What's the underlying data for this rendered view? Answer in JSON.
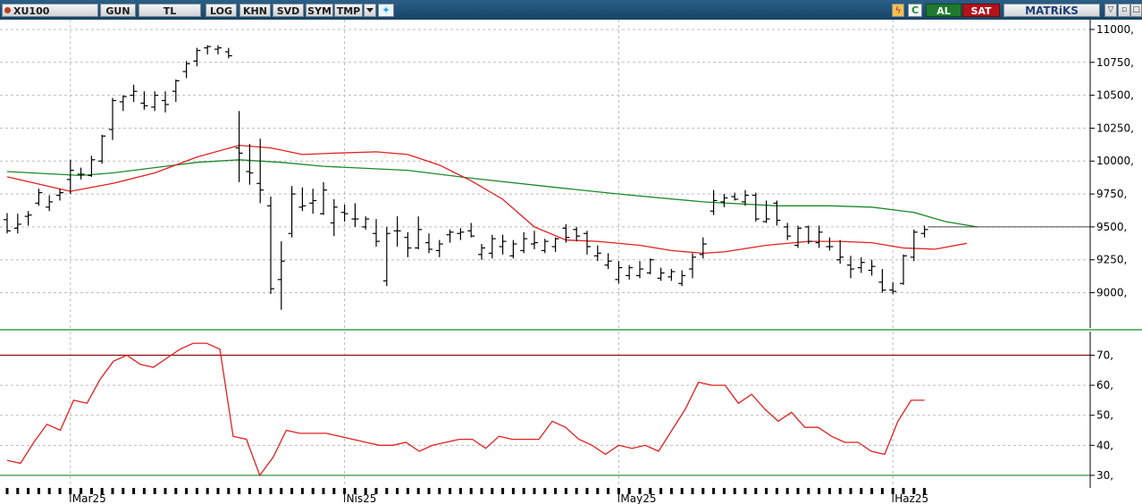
{
  "toolbar": {
    "symbol": "XU100",
    "buttons": [
      "GUN",
      "TL",
      "LOG",
      "KHN",
      "SVD",
      "SYM",
      "TMP"
    ],
    "buy_label": "AL",
    "sell_label": "SAT",
    "brand": "MATRiKS"
  },
  "chart_data": [
    {
      "type": "ohlc",
      "ylim": [
        8800,
        11020
      ],
      "yticks": [
        9000,
        9250,
        9500,
        9750,
        10000,
        10250,
        10500,
        10750,
        11000
      ],
      "ytick_labels": [
        "9000,",
        "9250,",
        "9500,",
        "9750,",
        "10000,",
        "10250,",
        "10500,",
        "10750,",
        "11000,"
      ],
      "x_labels": [
        "Mar25",
        "Nis25",
        "May25",
        "Haz25"
      ],
      "x_label_index": [
        6,
        32,
        58,
        84
      ],
      "grid": true,
      "bars": [
        [
          9555,
          9605,
          9450,
          9470
        ],
        [
          9490,
          9600,
          9450,
          9520
        ],
        [
          9580,
          9620,
          9510,
          9590
        ],
        [
          9680,
          9790,
          9660,
          9760
        ],
        [
          9650,
          9740,
          9620,
          9690
        ],
        [
          9740,
          9790,
          9700,
          9760
        ],
        [
          9860,
          10010,
          9750,
          9930
        ],
        [
          9900,
          9950,
          9860,
          9900
        ],
        [
          9890,
          10040,
          9880,
          10010
        ],
        [
          10000,
          10200,
          9980,
          10190
        ],
        [
          10240,
          10480,
          10160,
          10460
        ],
        [
          10450,
          10500,
          10380,
          10490
        ],
        [
          10500,
          10580,
          10450,
          10530
        ],
        [
          10440,
          10530,
          10390,
          10420
        ],
        [
          10410,
          10530,
          10380,
          10500
        ],
        [
          10460,
          10530,
          10370,
          10430
        ],
        [
          10530,
          10620,
          10450,
          10610
        ],
        [
          10680,
          10760,
          10630,
          10740
        ],
        [
          10760,
          10860,
          10720,
          10840
        ],
        [
          10860,
          10880,
          10810,
          10870
        ],
        [
          10850,
          10880,
          10810,
          10860
        ],
        [
          10830,
          10860,
          10780,
          10800
        ],
        [
          10100,
          10380,
          9840,
          10060
        ],
        [
          9920,
          10130,
          9820,
          9910
        ],
        [
          9830,
          10170,
          9680,
          9780
        ],
        [
          9660,
          9730,
          8990,
          9030
        ],
        [
          9100,
          9390,
          8870,
          9240
        ],
        [
          9450,
          9810,
          9420,
          9750
        ],
        [
          9650,
          9800,
          9620,
          9660
        ],
        [
          9680,
          9790,
          9600,
          9700
        ],
        [
          9600,
          9840,
          9590,
          9780
        ],
        [
          9530,
          9710,
          9430,
          9650
        ],
        [
          9610,
          9670,
          9540,
          9600
        ],
        [
          9560,
          9680,
          9500,
          9560
        ],
        [
          9500,
          9580,
          9480,
          9560
        ],
        [
          9450,
          9560,
          9350,
          9390
        ],
        [
          9090,
          9500,
          9050,
          9450
        ],
        [
          9470,
          9580,
          9350,
          9470
        ],
        [
          9420,
          9460,
          9270,
          9340
        ],
        [
          9340,
          9580,
          9330,
          9480
        ],
        [
          9380,
          9450,
          9300,
          9330
        ],
        [
          9320,
          9400,
          9270,
          9370
        ],
        [
          9440,
          9480,
          9380,
          9460
        ],
        [
          9450,
          9490,
          9400,
          9460
        ],
        [
          9470,
          9530,
          9420,
          9430
        ],
        [
          9290,
          9370,
          9250,
          9340
        ],
        [
          9300,
          9440,
          9260,
          9410
        ],
        [
          9350,
          9440,
          9290,
          9390
        ],
        [
          9280,
          9400,
          9260,
          9370
        ],
        [
          9320,
          9460,
          9300,
          9410
        ],
        [
          9370,
          9470,
          9330,
          9380
        ],
        [
          9320,
          9410,
          9300,
          9390
        ],
        [
          9350,
          9420,
          9310,
          9410
        ],
        [
          9490,
          9520,
          9380,
          9420
        ],
        [
          9480,
          9500,
          9390,
          9430
        ],
        [
          9450,
          9470,
          9290,
          9350
        ],
        [
          9280,
          9360,
          9240,
          9300
        ],
        [
          9210,
          9300,
          9180,
          9240
        ],
        [
          9100,
          9240,
          9070,
          9190
        ],
        [
          9130,
          9210,
          9100,
          9190
        ],
        [
          9130,
          9240,
          9110,
          9180
        ],
        [
          9150,
          9260,
          9140,
          9250
        ],
        [
          9110,
          9190,
          9090,
          9150
        ],
        [
          9120,
          9180,
          9090,
          9160
        ],
        [
          9070,
          9170,
          9050,
          9130
        ],
        [
          9180,
          9300,
          9110,
          9270
        ],
        [
          9290,
          9420,
          9260,
          9370
        ],
        [
          9620,
          9780,
          9590,
          9700
        ],
        [
          9690,
          9750,
          9650,
          9720
        ],
        [
          9730,
          9760,
          9700,
          9710
        ],
        [
          9690,
          9780,
          9660,
          9740
        ],
        [
          9740,
          9760,
          9540,
          9560
        ],
        [
          9540,
          9700,
          9530,
          9560
        ],
        [
          9680,
          9700,
          9510,
          9550
        ],
        [
          9500,
          9530,
          9400,
          9430
        ],
        [
          9360,
          9510,
          9340,
          9490
        ],
        [
          9500,
          9510,
          9370,
          9390
        ],
        [
          9380,
          9510,
          9340,
          9460
        ],
        [
          9350,
          9420,
          9320,
          9350
        ],
        [
          9250,
          9400,
          9220,
          9270
        ],
        [
          9210,
          9280,
          9110,
          9180
        ],
        [
          9190,
          9270,
          9150,
          9230
        ],
        [
          9170,
          9250,
          9130,
          9200
        ],
        [
          9080,
          9180,
          9000,
          9020
        ],
        [
          9020,
          9080,
          8990,
          9010
        ],
        [
          9070,
          9290,
          9060,
          9280
        ],
        [
          9270,
          9480,
          9240,
          9460
        ],
        [
          9450,
          9510,
          9420,
          9480
        ]
      ],
      "ma_red": [
        [
          0,
          9880
        ],
        [
          6,
          9770
        ],
        [
          10,
          9830
        ],
        [
          14,
          9910
        ],
        [
          18,
          10030
        ],
        [
          22,
          10120
        ],
        [
          25,
          10100
        ],
        [
          28,
          10050
        ],
        [
          31,
          10060
        ],
        [
          35,
          10070
        ],
        [
          38,
          10050
        ],
        [
          41,
          9970
        ],
        [
          44,
          9850
        ],
        [
          47,
          9710
        ],
        [
          50,
          9500
        ],
        [
          53,
          9400
        ],
        [
          56,
          9390
        ],
        [
          60,
          9360
        ],
        [
          63,
          9320
        ],
        [
          66,
          9300
        ],
        [
          68,
          9310
        ],
        [
          72,
          9360
        ],
        [
          76,
          9390
        ],
        [
          79,
          9390
        ],
        [
          82,
          9380
        ],
        [
          85,
          9340
        ],
        [
          88,
          9330
        ],
        [
          91,
          9375
        ]
      ],
      "ma_green": [
        [
          0,
          9920
        ],
        [
          7,
          9890
        ],
        [
          10,
          9910
        ],
        [
          14,
          9950
        ],
        [
          18,
          9990
        ],
        [
          22,
          10010
        ],
        [
          26,
          9990
        ],
        [
          30,
          9960
        ],
        [
          38,
          9930
        ],
        [
          44,
          9870
        ],
        [
          52,
          9800
        ],
        [
          58,
          9750
        ],
        [
          66,
          9690
        ],
        [
          73,
          9660
        ],
        [
          78,
          9660
        ],
        [
          82,
          9650
        ],
        [
          86,
          9610
        ],
        [
          89,
          9540
        ],
        [
          92,
          9500
        ]
      ],
      "ref_level": 9500
    },
    {
      "type": "line",
      "ylim": [
        27,
        77
      ],
      "yticks": [
        30,
        40,
        50,
        60,
        70
      ],
      "ytick_labels": [
        "30,",
        "40,",
        "50,",
        "60,",
        "70,"
      ],
      "levels": [
        30,
        70
      ],
      "series": [
        {
          "color": "#e02020",
          "values": [
            35,
            34,
            41,
            47,
            45,
            55,
            54,
            62,
            68,
            70,
            67,
            66,
            69,
            72,
            74,
            74,
            72,
            43,
            42,
            30,
            36,
            45,
            44,
            44,
            44,
            43,
            42,
            41,
            40,
            40,
            41,
            38,
            40,
            41,
            42,
            42,
            39,
            43,
            42,
            42,
            42,
            48,
            46,
            42,
            40,
            37,
            40,
            39,
            40,
            38,
            45,
            52,
            61,
            60,
            60,
            54,
            57,
            52,
            48,
            51,
            46,
            46,
            43,
            41,
            41,
            38,
            37,
            48,
            55,
            55
          ]
        }
      ]
    }
  ]
}
